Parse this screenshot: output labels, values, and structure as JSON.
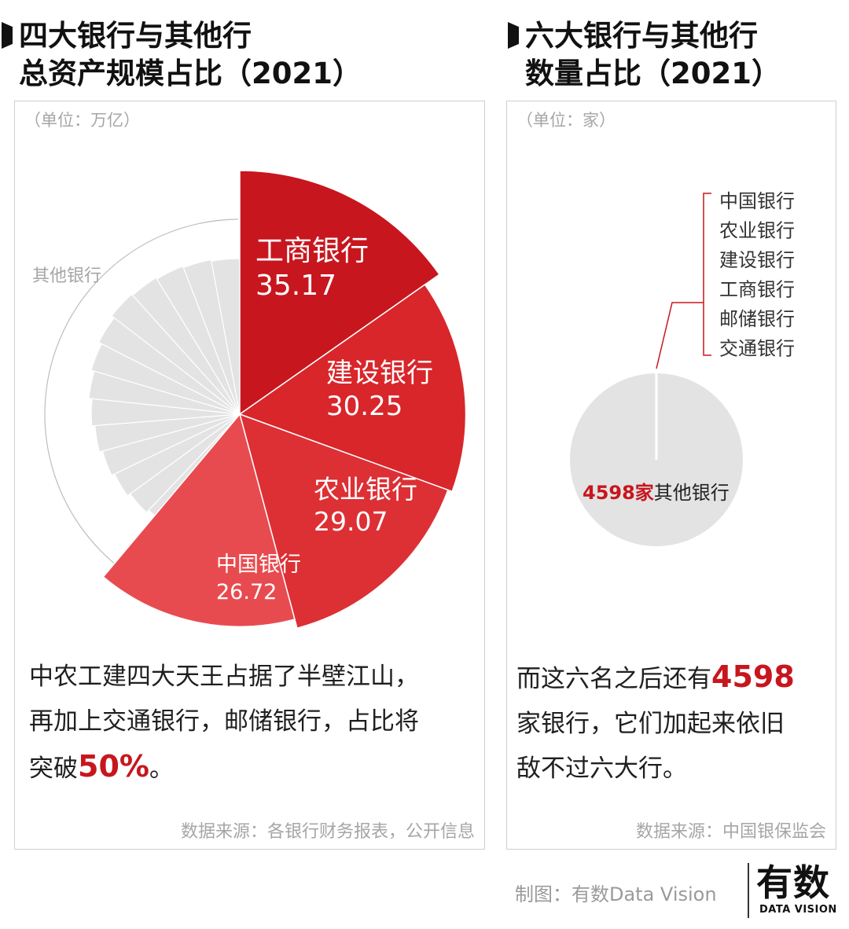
{
  "left": {
    "title_line1": "四大银行与其他行",
    "title_line2": "总资产规模占比（2021）",
    "unit": "（单位：万亿）",
    "text_line1": "中农工建四大天王占据了半壁江山，",
    "text_line2": "再加上交通银行，邮储银行，占比将",
    "text_line3_prefix": "突破",
    "text_highlight": "50%",
    "text_line3_suffix": "。",
    "source": "数据来源：各银行财务报表，公开信息"
  },
  "right": {
    "title_line1": "六大银行与其他行",
    "title_line2": "数量占比（2021）",
    "unit": "（单位：家）",
    "text_line1_prefix": "而这六名之后还有",
    "text_highlight": "4598",
    "text_line2": "家银行，它们加起来依旧",
    "text_line3": "敌不过六大行。",
    "source": "数据来源：中国银保监会"
  },
  "footer": {
    "credit": "制图：有数Data Vision",
    "logo": "有数",
    "logo_sub": "DATA VISION"
  },
  "colors": {
    "accent": "#c8161e",
    "other": "#e3e3e3",
    "text_gray": "#a6a6a6"
  },
  "chart_data": [
    {
      "type": "pie",
      "variant": "rose",
      "series": [
        {
          "name": "工商银行",
          "value": 35.17,
          "color": "#c8161e"
        },
        {
          "name": "建设银行",
          "value": 30.25,
          "color": "#d8262b"
        },
        {
          "name": "农业银行",
          "value": 29.07,
          "color": "#dc3035"
        },
        {
          "name": "中国银行",
          "value": 26.72,
          "color": "#e84b4f"
        }
      ],
      "other_label": "其他银行",
      "other_color": "#e3e3e3"
    },
    {
      "type": "pie",
      "series": [
        {
          "name": "其他银行",
          "value": 4598,
          "color": "#e3e3e3"
        }
      ],
      "six_banks": [
        "中国银行",
        "农业银行",
        "建设银行",
        "工商银行",
        "邮储银行",
        "交通银行"
      ],
      "annotation_value": "4598家",
      "annotation_label": "其他银行"
    }
  ]
}
